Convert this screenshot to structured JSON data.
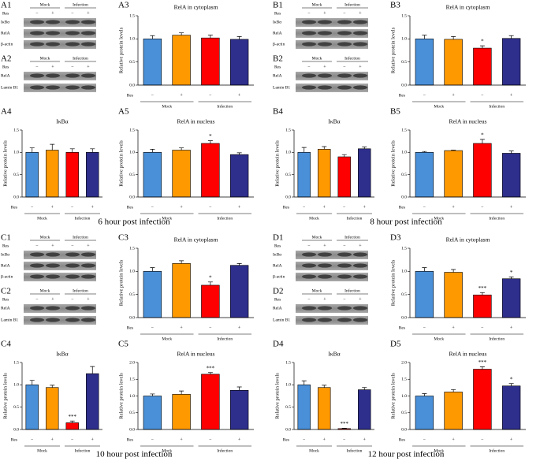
{
  "quadrants": [
    {
      "caption": "6 hour post infection",
      "blots": [
        {
          "label": "A1",
          "groups": [
            "Mock",
            "Infection"
          ],
          "res_label": "Res",
          "signs": [
            "−",
            "+",
            "−",
            "+"
          ],
          "rows": [
            "IκBα",
            "RelA",
            "β-actin"
          ]
        },
        {
          "label": "A2",
          "groups": [
            "Mock",
            "Infection"
          ],
          "res_label": "Res",
          "signs": [
            "−",
            "+",
            "−",
            "+"
          ],
          "rows": [
            "RelA",
            "Lamin B1"
          ]
        }
      ]
    },
    {
      "caption": "8 hour post infection",
      "blots": [
        {
          "label": "B1",
          "groups": [
            "Mock",
            "Infection"
          ],
          "res_label": "Res",
          "signs": [
            "−",
            "+",
            "−",
            "+"
          ],
          "rows": [
            "IκBα",
            "RelA",
            "β-actin"
          ]
        },
        {
          "label": "B2",
          "groups": [
            "Mock",
            "Infection"
          ],
          "res_label": "Res",
          "signs": [
            "−",
            "+",
            "−",
            "+"
          ],
          "rows": [
            "RelA",
            "Lamin B1"
          ]
        }
      ]
    },
    {
      "caption": "10 hour post infection",
      "blots": [
        {
          "label": "C1",
          "groups": [
            "Mock",
            "Infection"
          ],
          "res_label": "Res",
          "signs": [
            "−",
            "+",
            "−",
            "+"
          ],
          "rows": [
            "IκBα",
            "RelA",
            "β-actin"
          ]
        },
        {
          "label": "C2",
          "groups": [
            "Mock",
            "Infection"
          ],
          "res_label": "Res",
          "signs": [
            "−",
            "+",
            "−",
            "+"
          ],
          "rows": [
            "RelA",
            "Lamin B1"
          ]
        }
      ]
    },
    {
      "caption": "12 hour post infection",
      "blots": [
        {
          "label": "D1",
          "groups": [
            "Mock",
            "Infection"
          ],
          "res_label": "Res",
          "signs": [
            "−",
            "+",
            "−",
            "+"
          ],
          "rows": [
            "IκBα",
            "RelA",
            "β-actin"
          ]
        },
        {
          "label": "D2",
          "groups": [
            "Mock",
            "Infection"
          ],
          "res_label": "Res",
          "signs": [
            "−",
            "+",
            "−",
            "+"
          ],
          "rows": [
            "RelA",
            "Lamin B1"
          ]
        }
      ]
    }
  ],
  "chart_data": [
    {
      "type": "bar",
      "label": "A3",
      "title": "RelA in cytoplasm",
      "ylabel": "Relative protein levels",
      "row_label": "Res",
      "categories": [
        "−",
        "+",
        "−",
        "+"
      ],
      "groups": [
        "Mock",
        "Infection"
      ],
      "values": [
        1.0,
        1.08,
        1.02,
        0.99
      ],
      "errors": [
        0.07,
        0.05,
        0.06,
        0.06
      ],
      "significance": [
        null,
        null,
        null,
        null
      ],
      "colors": [
        "#4a90d9",
        "#ff9900",
        "#ff0000",
        "#2e2e8c"
      ],
      "ylim": [
        0,
        1.5
      ],
      "yticks": [
        {
          "value": 0,
          "label": "0.0"
        },
        0.5,
        {
          "value": 1,
          "label": "1.0"
        },
        1.5
      ]
    },
    {
      "type": "bar",
      "label": "A4",
      "title": "IκBα",
      "ylabel": "Relative protein levels",
      "row_label": "Res",
      "categories": [
        "−",
        "+",
        "−",
        "+"
      ],
      "groups": [
        "Mock",
        "Infection"
      ],
      "values": [
        1.0,
        1.05,
        1.0,
        1.0
      ],
      "errors": [
        0.1,
        0.13,
        0.08,
        0.08
      ],
      "significance": [
        null,
        null,
        null,
        null
      ],
      "colors": [
        "#4a90d9",
        "#ff9900",
        "#ff0000",
        "#2e2e8c"
      ],
      "ylim": [
        0,
        1.5
      ],
      "yticks": [
        {
          "value": 0,
          "label": "0.0"
        },
        0.5,
        {
          "value": 1,
          "label": "1.0"
        },
        1.5
      ]
    },
    {
      "type": "bar",
      "label": "A5",
      "title": "RelA in nucleus",
      "ylabel": "Relative protein levels",
      "row_label": "Res",
      "categories": [
        "−",
        "+",
        "−",
        "+"
      ],
      "groups": [
        "Mock",
        "Infection"
      ],
      "values": [
        1.0,
        1.05,
        1.2,
        0.95
      ],
      "errors": [
        0.07,
        0.05,
        0.06,
        0.04
      ],
      "significance": [
        null,
        null,
        "*",
        null
      ],
      "colors": [
        "#4a90d9",
        "#ff9900",
        "#ff0000",
        "#2e2e8c"
      ],
      "ylim": [
        0,
        1.5
      ],
      "yticks": [
        {
          "value": 0,
          "label": "0.0"
        },
        0.5,
        {
          "value": 1,
          "label": "1.0"
        },
        1.5
      ]
    },
    {
      "type": "bar",
      "label": "B3",
      "title": "RelA in cytoplasm",
      "ylabel": "Relative protein levels",
      "row_label": "Res",
      "categories": [
        "−",
        "+",
        "−",
        "+"
      ],
      "groups": [
        "Mock",
        "Infection"
      ],
      "values": [
        1.0,
        0.99,
        0.8,
        1.01
      ],
      "errors": [
        0.08,
        0.06,
        0.05,
        0.06
      ],
      "significance": [
        null,
        null,
        "*",
        null
      ],
      "colors": [
        "#4a90d9",
        "#ff9900",
        "#ff0000",
        "#2e2e8c"
      ],
      "ylim": [
        0,
        1.5
      ],
      "yticks": [
        {
          "value": 0,
          "label": "0.0"
        },
        0.5,
        {
          "value": 1,
          "label": "1.0"
        },
        1.5
      ]
    },
    {
      "type": "bar",
      "label": "B4",
      "title": "IκBα",
      "ylabel": "Relative protein levels",
      "row_label": "Res",
      "categories": [
        "−",
        "+",
        "−",
        "+"
      ],
      "groups": [
        "Mock",
        "Infection"
      ],
      "values": [
        1.0,
        1.07,
        0.9,
        1.08
      ],
      "errors": [
        0.11,
        0.06,
        0.05,
        0.04
      ],
      "significance": [
        null,
        null,
        null,
        null
      ],
      "colors": [
        "#4a90d9",
        "#ff9900",
        "#ff0000",
        "#2e2e8c"
      ],
      "ylim": [
        0,
        1.5
      ],
      "yticks": [
        {
          "value": 0,
          "label": "0.0"
        },
        0.5,
        {
          "value": 1,
          "label": "1.0"
        },
        1.5
      ]
    },
    {
      "type": "bar",
      "label": "B5",
      "title": "RelA in nucleus",
      "ylabel": "Relative protein levels",
      "row_label": "Res",
      "categories": [
        "−",
        "+",
        "−",
        "+"
      ],
      "groups": [
        "Mock",
        "Infection"
      ],
      "values": [
        1.0,
        1.04,
        1.2,
        0.98
      ],
      "errors": [
        0.02,
        0.01,
        0.09,
        0.05
      ],
      "significance": [
        null,
        null,
        "*",
        null
      ],
      "colors": [
        "#4a90d9",
        "#ff9900",
        "#ff0000",
        "#2e2e8c"
      ],
      "ylim": [
        0,
        1.5
      ],
      "yticks": [
        {
          "value": 0,
          "label": "0.0"
        },
        0.5,
        {
          "value": 1,
          "label": "1.0"
        },
        1.5
      ]
    },
    {
      "type": "bar",
      "label": "C3",
      "title": "RelA in cytoplasm",
      "ylabel": "Relative protein levels",
      "row_label": "Res",
      "categories": [
        "−",
        "+",
        "−",
        "+"
      ],
      "groups": [
        "Mock",
        "Infection"
      ],
      "values": [
        1.0,
        1.17,
        0.7,
        1.13
      ],
      "errors": [
        0.08,
        0.06,
        0.07,
        0.04
      ],
      "significance": [
        null,
        null,
        "*",
        null
      ],
      "colors": [
        "#4a90d9",
        "#ff9900",
        "#ff0000",
        "#2e2e8c"
      ],
      "ylim": [
        0,
        1.5
      ],
      "yticks": [
        {
          "value": 0,
          "label": "0.0"
        },
        0.5,
        {
          "value": 1,
          "label": "1.0"
        },
        1.5
      ]
    },
    {
      "type": "bar",
      "label": "C4",
      "title": "IκBα",
      "ylabel": "Relative protein levels",
      "row_label": "Res",
      "categories": [
        "−",
        "+",
        "−",
        "+"
      ],
      "groups": [
        "Mock",
        "Infection"
      ],
      "values": [
        1.0,
        0.94,
        0.15,
        1.25
      ],
      "errors": [
        0.1,
        0.05,
        0.04,
        0.16
      ],
      "significance": [
        null,
        null,
        "***",
        null
      ],
      "colors": [
        "#4a90d9",
        "#ff9900",
        "#ff0000",
        "#2e2e8c"
      ],
      "ylim": [
        0,
        1.5
      ],
      "yticks": [
        {
          "value": 0,
          "label": "0.0"
        },
        0.5,
        {
          "value": 1,
          "label": "1.0"
        },
        1.5
      ]
    },
    {
      "type": "bar",
      "label": "C5",
      "title": "RelA in nucleus",
      "ylabel": "Relative protein levels",
      "row_label": "Res",
      "categories": [
        "−",
        "+",
        "−",
        "+"
      ],
      "groups": [
        "Mock",
        "Infection"
      ],
      "values": [
        1.0,
        1.05,
        1.65,
        1.17
      ],
      "errors": [
        0.06,
        0.1,
        0.05,
        0.1
      ],
      "significance": [
        null,
        null,
        "***",
        null
      ],
      "colors": [
        "#4a90d9",
        "#ff9900",
        "#ff0000",
        "#2e2e8c"
      ],
      "ylim": [
        0,
        2
      ],
      "yticks": [
        {
          "value": 0,
          "label": "0.0"
        },
        0.5,
        {
          "value": 1,
          "label": "1.0"
        },
        1.5,
        {
          "value": 2,
          "label": "2.0"
        }
      ]
    },
    {
      "type": "bar",
      "label": "D3",
      "title": "RelA in cytoplasm",
      "ylabel": "Relative protein levels",
      "row_label": "Res",
      "categories": [
        "−",
        "+",
        "−",
        "+"
      ],
      "groups": [
        "Mock",
        "Infection"
      ],
      "values": [
        1.0,
        0.98,
        0.49,
        0.84
      ],
      "errors": [
        0.08,
        0.06,
        0.05,
        0.04
      ],
      "significance": [
        null,
        null,
        "***",
        "*"
      ],
      "colors": [
        "#4a90d9",
        "#ff9900",
        "#ff0000",
        "#2e2e8c"
      ],
      "ylim": [
        0,
        1.5
      ],
      "yticks": [
        {
          "value": 0,
          "label": "0.0"
        },
        0.5,
        {
          "value": 1,
          "label": "1.0"
        },
        1.5
      ]
    },
    {
      "type": "bar",
      "label": "D4",
      "title": "IκBα",
      "ylabel": "Relative protein levels",
      "row_label": "Res",
      "categories": [
        "−",
        "+",
        "−",
        "+"
      ],
      "groups": [
        "Mock",
        "Infection"
      ],
      "values": [
        1.0,
        0.94,
        0.02,
        0.89
      ],
      "errors": [
        0.09,
        0.05,
        0.01,
        0.05
      ],
      "significance": [
        null,
        null,
        "***",
        null
      ],
      "colors": [
        "#4a90d9",
        "#ff9900",
        "#ff0000",
        "#2e2e8c"
      ],
      "ylim": [
        0,
        1.5
      ],
      "yticks": [
        {
          "value": 0,
          "label": "0.0"
        },
        0.5,
        {
          "value": 1,
          "label": "1.0"
        },
        1.5
      ]
    },
    {
      "type": "bar",
      "label": "D5",
      "title": "RelA in nucleus",
      "ylabel": "Relative protein levels",
      "row_label": "Res",
      "categories": [
        "−",
        "+",
        "−",
        "+"
      ],
      "groups": [
        "Mock",
        "Infection"
      ],
      "values": [
        1.0,
        1.12,
        1.8,
        1.3
      ],
      "errors": [
        0.07,
        0.07,
        0.07,
        0.07
      ],
      "significance": [
        null,
        null,
        "***",
        "*"
      ],
      "colors": [
        "#4a90d9",
        "#ff9900",
        "#ff0000",
        "#2e2e8c"
      ],
      "ylim": [
        0,
        2
      ],
      "yticks": [
        {
          "value": 0,
          "label": "0.0"
        },
        0.5,
        {
          "value": 1,
          "label": "1.0"
        },
        1.5,
        {
          "value": 2,
          "label": "2.0"
        }
      ]
    }
  ]
}
